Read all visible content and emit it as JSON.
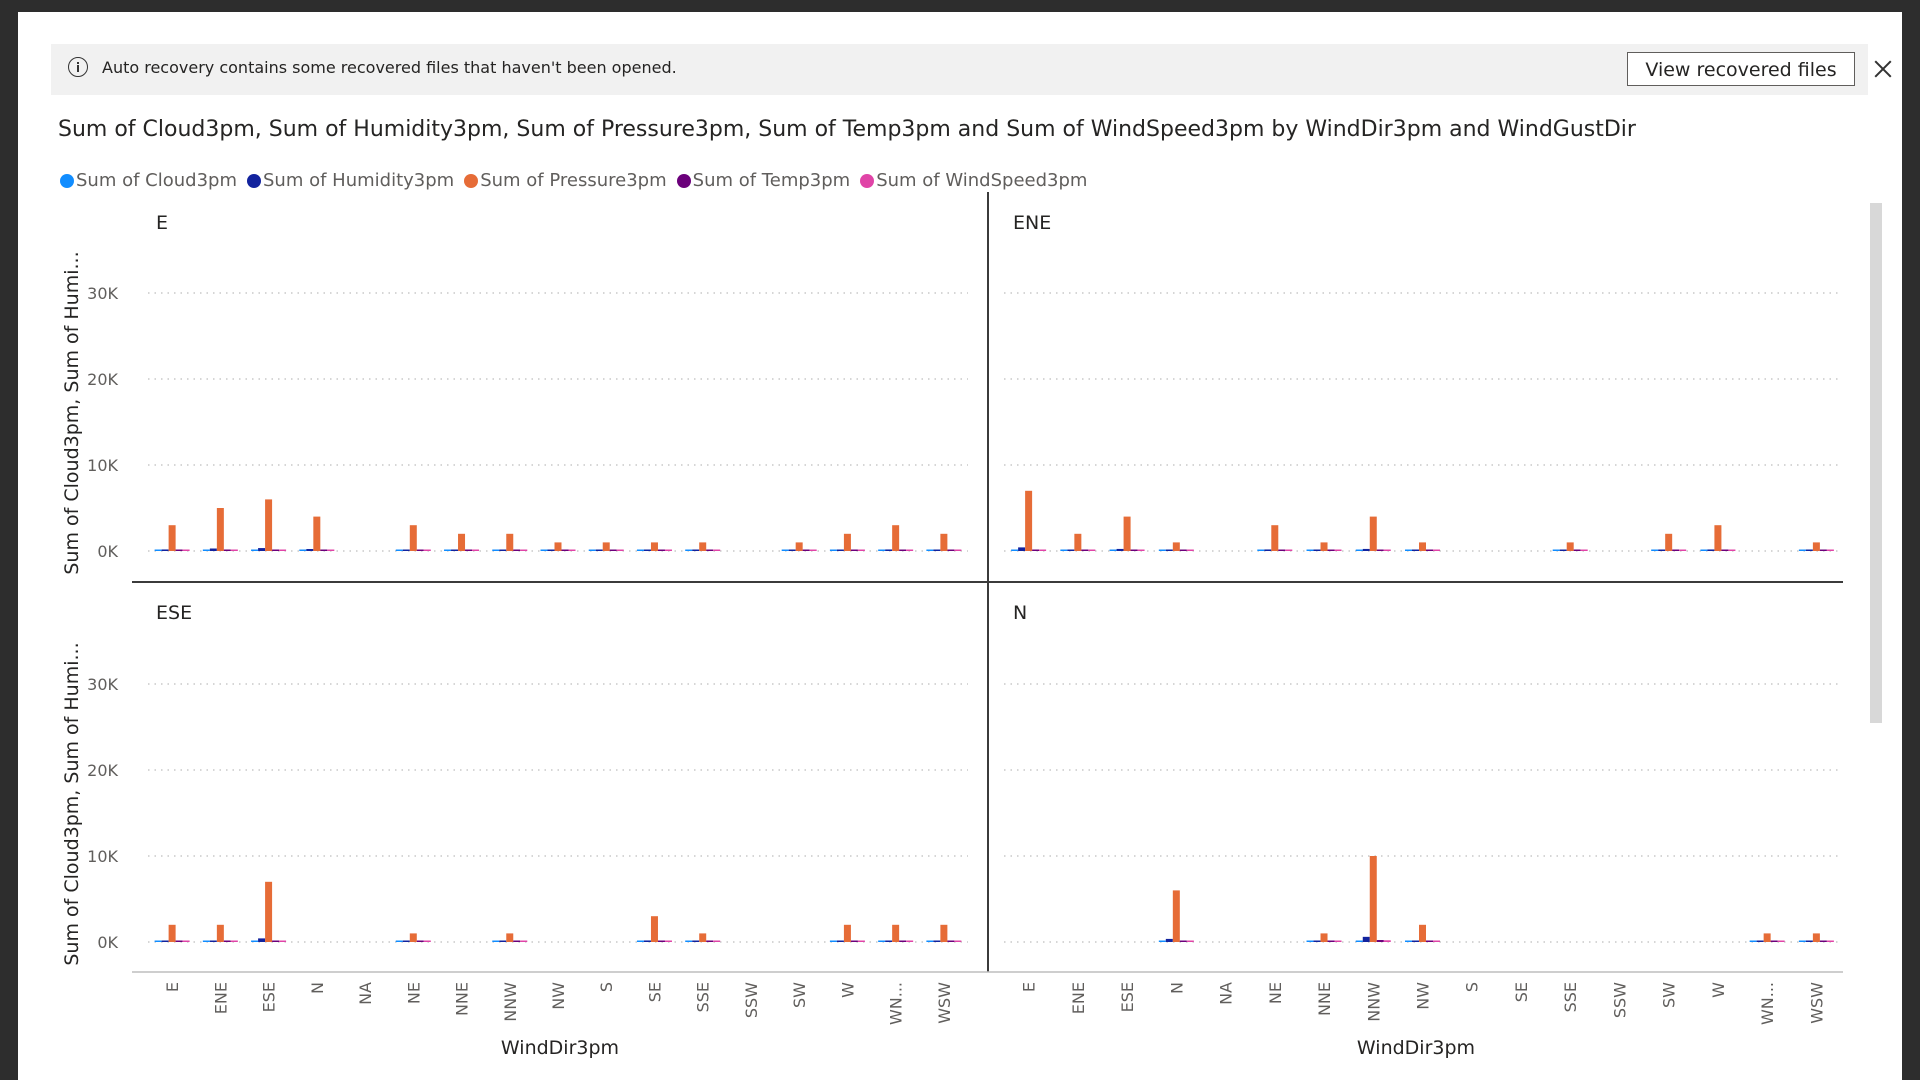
{
  "notice": {
    "text": "Auto recovery contains some recovered files that haven't been opened.",
    "button_label": "View recovered files",
    "info_icon": "info-icon",
    "close_icon": "close-icon"
  },
  "chart_data": {
    "type": "bar",
    "title": "Sum of Cloud3pm, Sum of Humidity3pm, Sum of Pressure3pm, Sum of Temp3pm and Sum of WindSpeed3pm by WindDir3pm and WindGustDir",
    "xlabel": "WindDir3pm",
    "ylabel": "Sum of Cloud3pm, Sum of Humi...",
    "ylim": [
      0,
      30000
    ],
    "yticks": [
      "0K",
      "10K",
      "20K",
      "30K"
    ],
    "grid": true,
    "legend_position": "top-left",
    "categories": [
      "E",
      "ENE",
      "ESE",
      "N",
      "NA",
      "NE",
      "NNE",
      "NNW",
      "NW",
      "S",
      "SE",
      "SSE",
      "SSW",
      "SW",
      "W",
      "WN...",
      "WSW"
    ],
    "series_names": [
      "Sum of Cloud3pm",
      "Sum of Humidity3pm",
      "Sum of Pressure3pm",
      "Sum of Temp3pm",
      "Sum of WindSpeed3pm"
    ],
    "colors": [
      "#118DFF",
      "#12239E",
      "#E66C37",
      "#6B007B",
      "#E044A7"
    ],
    "panels": [
      {
        "label": "E",
        "series": [
          {
            "name": "Sum of Cloud3pm",
            "values": [
              15,
              25,
              30,
              20,
              null,
              15,
              10,
              10,
              5,
              5,
              5,
              5,
              null,
              5,
              10,
              15,
              10
            ]
          },
          {
            "name": "Sum of Humidity3pm",
            "values": [
              180,
              290,
              340,
              230,
              null,
              170,
              110,
              110,
              60,
              60,
              60,
              60,
              null,
              60,
              110,
              180,
              110
            ]
          },
          {
            "name": "Sum of Pressure3pm",
            "values": [
              3000,
              5000,
              6000,
              4000,
              null,
              3000,
              2000,
              2000,
              1000,
              1000,
              1000,
              1000,
              null,
              1000,
              2000,
              3000,
              2000
            ]
          },
          {
            "name": "Sum of Temp3pm",
            "values": [
              70,
              120,
              140,
              95,
              null,
              70,
              45,
              45,
              25,
              25,
              25,
              25,
              null,
              25,
              45,
              70,
              45
            ]
          },
          {
            "name": "Sum of WindSpeed3pm",
            "values": [
              60,
              100,
              120,
              80,
              null,
              60,
              40,
              40,
              20,
              20,
              20,
              20,
              null,
              20,
              40,
              60,
              40
            ]
          }
        ]
      },
      {
        "label": "ENE",
        "series": [
          {
            "name": "Sum of Cloud3pm",
            "values": [
              35,
              10,
              20,
              5,
              null,
              15,
              5,
              20,
              5,
              null,
              null,
              5,
              null,
              10,
              15,
              null,
              5
            ]
          },
          {
            "name": "Sum of Humidity3pm",
            "values": [
              420,
              120,
              240,
              60,
              null,
              180,
              60,
              240,
              60,
              null,
              null,
              60,
              null,
              120,
              180,
              null,
              60
            ]
          },
          {
            "name": "Sum of Pressure3pm",
            "values": [
              7000,
              2000,
              4000,
              1000,
              null,
              3000,
              1000,
              4000,
              1000,
              null,
              null,
              1000,
              null,
              2000,
              3000,
              null,
              1000
            ]
          },
          {
            "name": "Sum of Temp3pm",
            "values": [
              160,
              45,
              95,
              25,
              null,
              70,
              25,
              95,
              25,
              null,
              null,
              25,
              null,
              45,
              70,
              null,
              25
            ]
          },
          {
            "name": "Sum of WindSpeed3pm",
            "values": [
              140,
              40,
              80,
              20,
              null,
              60,
              20,
              80,
              20,
              null,
              null,
              20,
              null,
              40,
              60,
              null,
              20
            ]
          }
        ]
      },
      {
        "label": "ESE",
        "series": [
          {
            "name": "Sum of Cloud3pm",
            "values": [
              10,
              10,
              35,
              null,
              null,
              5,
              null,
              5,
              null,
              null,
              15,
              5,
              null,
              null,
              10,
              10,
              10
            ]
          },
          {
            "name": "Sum of Humidity3pm",
            "values": [
              120,
              120,
              420,
              null,
              null,
              60,
              null,
              60,
              null,
              null,
              180,
              60,
              null,
              null,
              120,
              120,
              120
            ]
          },
          {
            "name": "Sum of Pressure3pm",
            "values": [
              2000,
              2000,
              7000,
              null,
              null,
              1000,
              null,
              1000,
              null,
              null,
              3000,
              1000,
              null,
              null,
              2000,
              2000,
              2000
            ]
          },
          {
            "name": "Sum of Temp3pm",
            "values": [
              45,
              45,
              160,
              null,
              null,
              25,
              null,
              25,
              null,
              null,
              70,
              25,
              null,
              null,
              45,
              45,
              45
            ]
          },
          {
            "name": "Sum of WindSpeed3pm",
            "values": [
              40,
              40,
              140,
              null,
              null,
              20,
              null,
              20,
              null,
              null,
              60,
              20,
              null,
              null,
              40,
              40,
              40
            ]
          }
        ]
      },
      {
        "label": "N",
        "series": [
          {
            "name": "Sum of Cloud3pm",
            "values": [
              null,
              null,
              null,
              30,
              null,
              null,
              5,
              50,
              10,
              null,
              null,
              null,
              null,
              null,
              null,
              5,
              5
            ]
          },
          {
            "name": "Sum of Humidity3pm",
            "values": [
              null,
              null,
              null,
              360,
              null,
              null,
              60,
              600,
              120,
              null,
              null,
              null,
              null,
              null,
              null,
              60,
              60
            ]
          },
          {
            "name": "Sum of Pressure3pm",
            "values": [
              null,
              null,
              null,
              6000,
              null,
              null,
              1000,
              10000,
              2000,
              null,
              null,
              null,
              null,
              null,
              null,
              1000,
              1000
            ]
          },
          {
            "name": "Sum of Temp3pm",
            "values": [
              null,
              null,
              null,
              140,
              null,
              null,
              25,
              230,
              45,
              null,
              null,
              null,
              null,
              null,
              null,
              25,
              25
            ]
          },
          {
            "name": "Sum of WindSpeed3pm",
            "values": [
              null,
              null,
              null,
              120,
              null,
              null,
              20,
              200,
              40,
              null,
              null,
              null,
              null,
              null,
              null,
              20,
              20
            ]
          }
        ]
      }
    ]
  }
}
